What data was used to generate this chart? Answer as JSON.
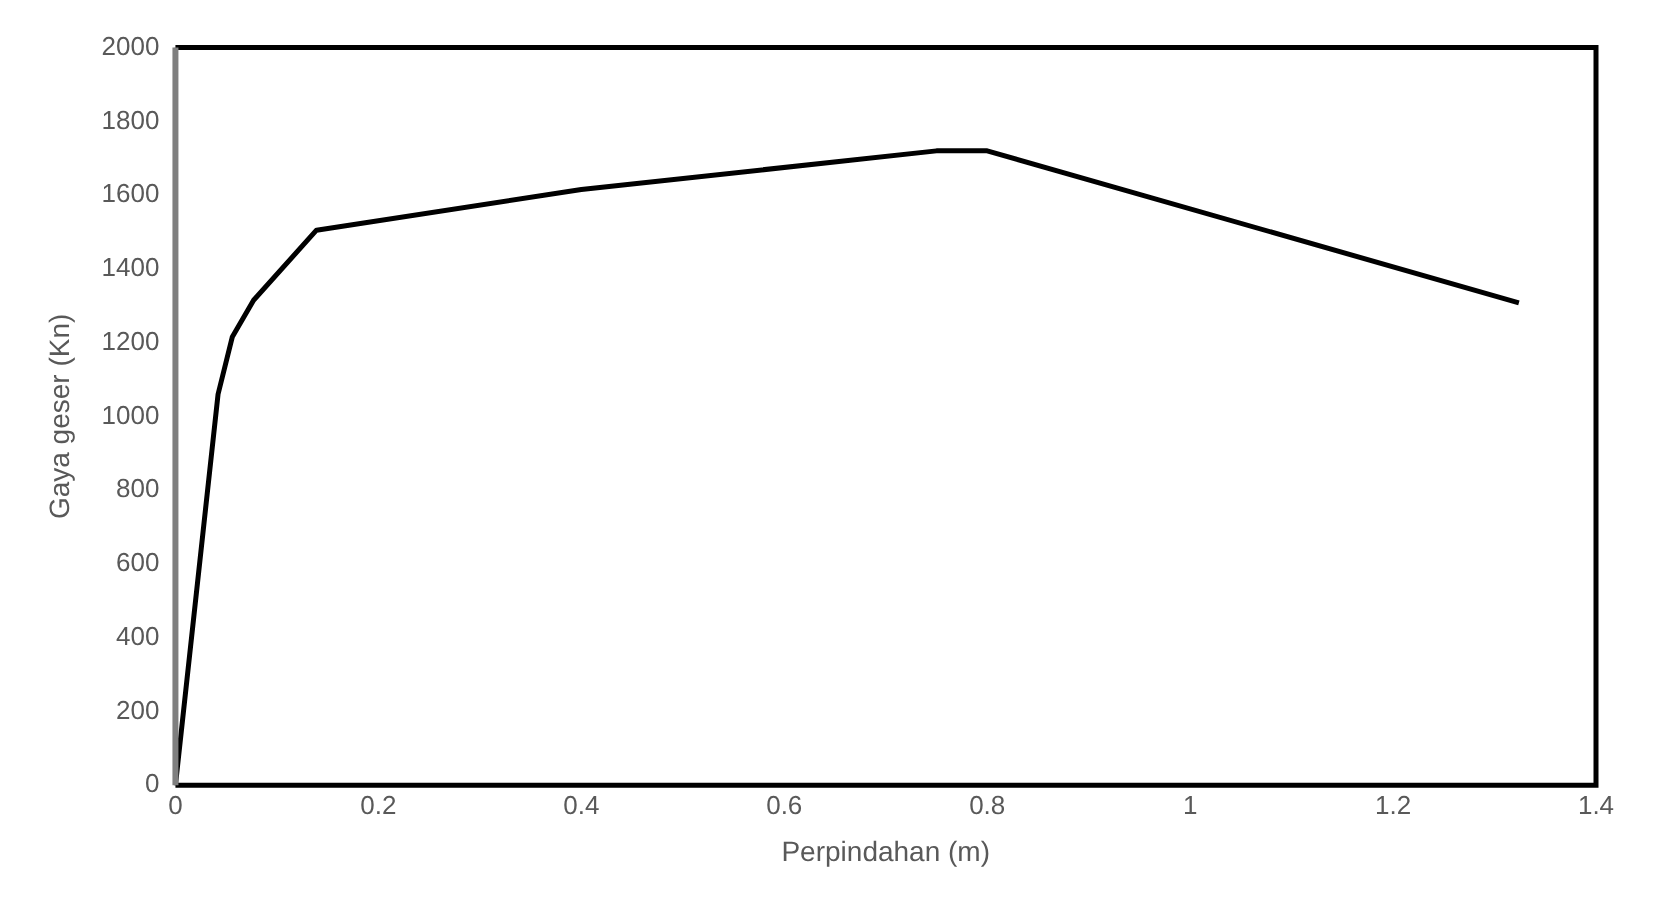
{
  "chart_data": {
    "type": "line",
    "xlabel": "Perpindahan (m)",
    "ylabel": "Gaya geser (Kn)",
    "x": [
      0,
      0.042,
      0.056,
      0.077,
      0.139,
      0.4,
      0.75,
      0.8,
      1.324
    ],
    "series": [
      {
        "color": "#000000",
        "values": [
          0,
          1060,
          1215,
          1315,
          1505,
          1615,
          1720,
          1720,
          1308
        ]
      }
    ],
    "xlim": [
      0,
      1.4
    ],
    "xticks": [
      0,
      0.2,
      0.4,
      0.6,
      0.8,
      1,
      1.2,
      1.4
    ],
    "ylim": [
      0,
      2000
    ],
    "yticks": [
      0,
      200,
      400,
      600,
      800,
      1000,
      1200,
      1400,
      1600,
      1800,
      2000
    ],
    "grid": false,
    "legend": false,
    "marker": "none",
    "line_style": "solid"
  }
}
